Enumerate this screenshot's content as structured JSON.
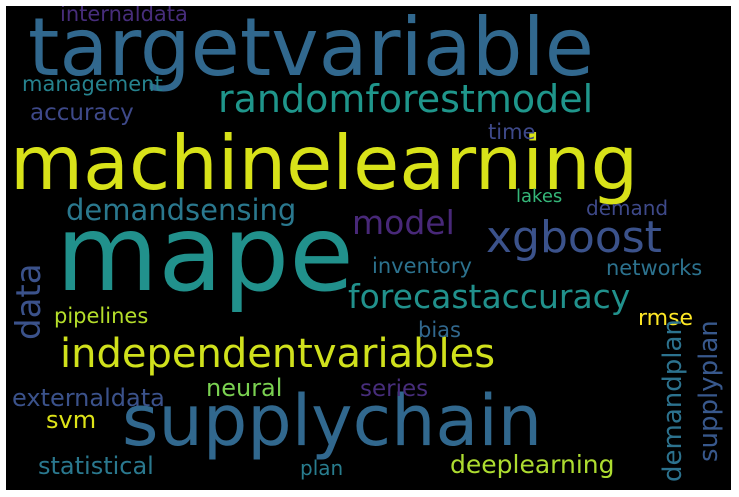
{
  "words": {
    "targetvariable": {
      "text": "targetvariable",
      "color": "#31688e"
    },
    "machinelearning": {
      "text": "machinelearning",
      "color": "#d8e219"
    },
    "mape": {
      "text": "mape",
      "color": "#21918c"
    },
    "supplychain": {
      "text": "supplychain",
      "color": "#31688e"
    },
    "randomforestmodel": {
      "text": "randomforestmodel",
      "color": "#1f968b"
    },
    "independentvariables": {
      "text": "independentvariables",
      "color": "#d0e11c"
    },
    "forecastaccuracy": {
      "text": "forecastaccuracy",
      "color": "#21918c"
    },
    "xgboost": {
      "text": "xgboost",
      "color": "#3b528b"
    },
    "demandsensing": {
      "text": "demandsensing",
      "color": "#2a788e"
    },
    "model": {
      "text": "model",
      "color": "#482878"
    },
    "internaldata": {
      "text": "internaldata",
      "color": "#472d7b"
    },
    "management": {
      "text": "management",
      "color": "#26828e"
    },
    "accuracy": {
      "text": "accuracy",
      "color": "#3e4989"
    },
    "time": {
      "text": "time",
      "color": "#3e4989"
    },
    "data": {
      "text": "data",
      "color": "#3b528b"
    },
    "lakes": {
      "text": "lakes",
      "color": "#35b779"
    },
    "demand": {
      "text": "demand",
      "color": "#3e4989"
    },
    "inventory": {
      "text": "inventory",
      "color": "#2c728e"
    },
    "networks": {
      "text": "networks",
      "color": "#2c728e"
    },
    "pipelines": {
      "text": "pipelines",
      "color": "#b5de2b"
    },
    "bias": {
      "text": "bias",
      "color": "#31688e"
    },
    "rmse": {
      "text": "rmse",
      "color": "#fde725"
    },
    "externaldata": {
      "text": "externaldata",
      "color": "#3b528b"
    },
    "neural": {
      "text": "neural",
      "color": "#7ad151"
    },
    "series": {
      "text": "series",
      "color": "#472d7b"
    },
    "svm": {
      "text": "svm",
      "color": "#dde318"
    },
    "statistical": {
      "text": "statistical",
      "color": "#2a788e"
    },
    "plan": {
      "text": "plan",
      "color": "#287d8e"
    },
    "deeplearning": {
      "text": "deeplearning",
      "color": "#addc30"
    },
    "demandplan": {
      "text": "demandplan",
      "color": "#2c728e"
    },
    "supplyplan": {
      "text": "supplyplan",
      "color": "#38588c"
    }
  }
}
